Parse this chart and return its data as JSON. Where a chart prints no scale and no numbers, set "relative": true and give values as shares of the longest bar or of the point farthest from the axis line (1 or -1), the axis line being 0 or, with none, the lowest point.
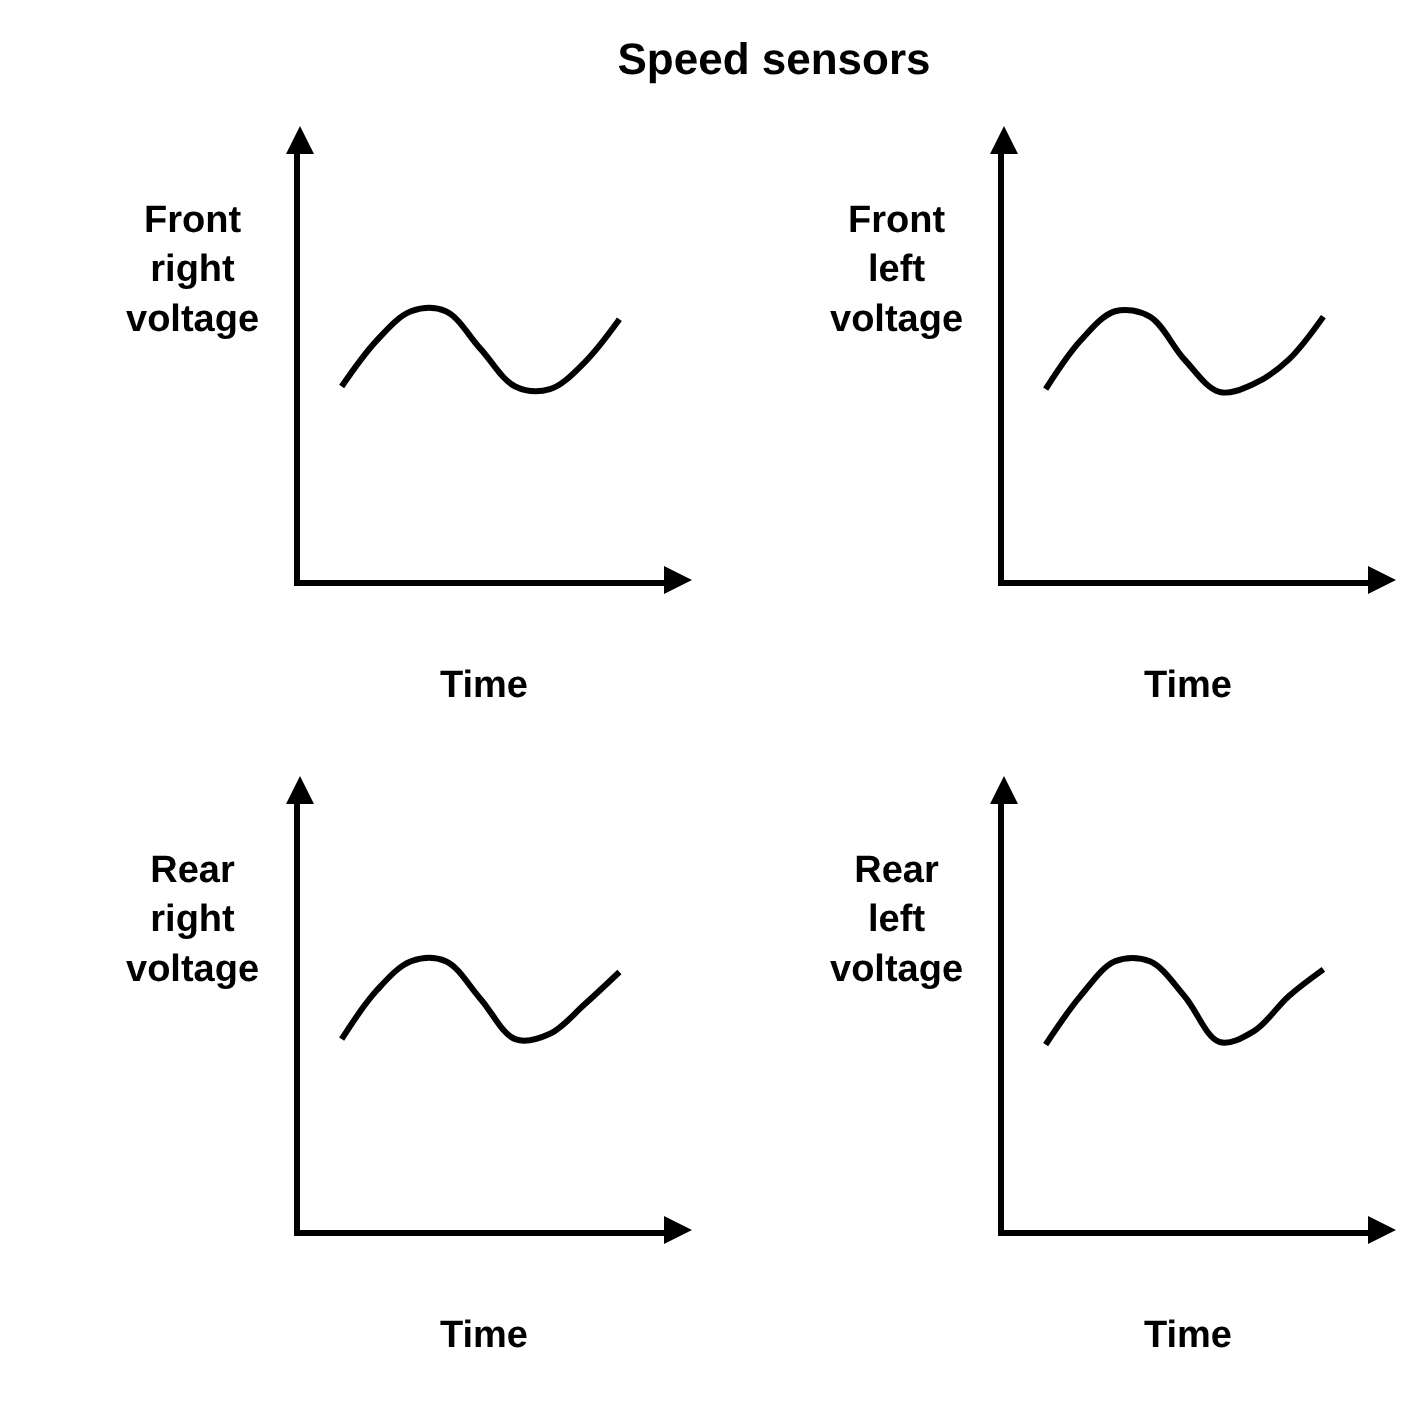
{
  "chart_data": [
    {
      "type": "line",
      "title": "Speed sensors",
      "ylabel": "Front right voltage",
      "xlabel": "Time",
      "relative": true,
      "categories": [
        null,
        null,
        null,
        null,
        null,
        null,
        null,
        null,
        null
      ],
      "series": [
        {
          "color": "#000000",
          "values": [
            0.72,
            0.89,
            1,
            1,
            0.86,
            0.72,
            0.71,
            0.81,
            0.97
          ]
        }
      ]
    },
    {
      "type": "line",
      "ylabel": "Front left voltage",
      "xlabel": "Time",
      "relative": true,
      "categories": [
        null,
        null,
        null,
        null,
        null,
        null,
        null,
        null,
        null
      ],
      "series": [
        {
          "color": "#000000",
          "values": [
            0.71,
            0.89,
            1,
            0.98,
            0.82,
            0.7,
            0.73,
            0.82,
            0.98
          ]
        }
      ]
    },
    {
      "type": "line",
      "ylabel": "Rear right voltage",
      "xlabel": "Time",
      "relative": true,
      "categories": [
        null,
        null,
        null,
        null,
        null,
        null,
        null,
        null,
        null
      ],
      "series": [
        {
          "color": "#000000",
          "values": [
            0.71,
            0.89,
            1,
            1,
            0.86,
            0.71,
            0.73,
            0.84,
            0.96
          ]
        }
      ]
    },
    {
      "type": "line",
      "ylabel": "Rear left voltage",
      "xlabel": "Time",
      "relative": true,
      "categories": [
        null,
        null,
        null,
        null,
        null,
        null,
        null,
        null,
        null
      ],
      "series": [
        {
          "color": "#000000",
          "values": [
            0.69,
            0.87,
            1,
            1,
            0.87,
            0.7,
            0.74,
            0.87,
            0.97
          ]
        }
      ]
    }
  ]
}
